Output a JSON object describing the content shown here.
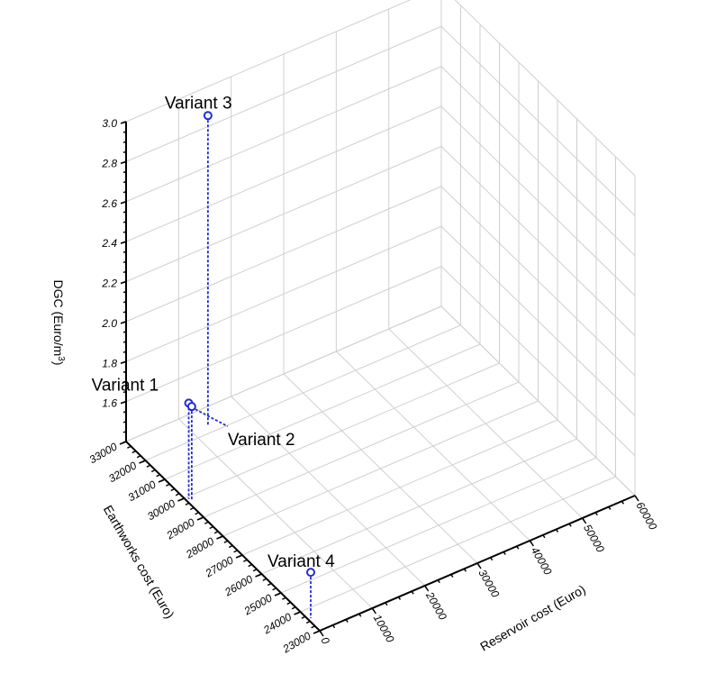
{
  "chart_data": {
    "type": "scatter",
    "title": "",
    "xlabel": "Reservoir cost (Euro)",
    "ylabel": "Earthworks cost (Euro)",
    "zlabel_main": "DGC (Euro/m",
    "zlabel_sup": "3",
    "zlabel_close": ")",
    "xlim": [
      0,
      60000
    ],
    "ylim": [
      23000,
      33000
    ],
    "zlim": [
      1.4,
      3.0
    ],
    "x_ticks": [
      "0",
      "10000",
      "20000",
      "30000",
      "40000",
      "50000",
      "60000"
    ],
    "y_ticks": [
      "23000",
      "24000",
      "25000",
      "26000",
      "27000",
      "28000",
      "29000",
      "30000",
      "31000",
      "32000",
      "33000"
    ],
    "z_ticks": [
      "1.6",
      "1.8",
      "2.0",
      "2.2",
      "2.4",
      "2.6",
      "2.8",
      "3.0"
    ],
    "grid": true,
    "points": [
      {
        "label": "Variant 1",
        "x": 500,
        "y": 29900,
        "z": 1.88
      },
      {
        "label": "Variant 2",
        "x": 700,
        "y": 29800,
        "z": 1.87
      },
      {
        "label": "Variant 3",
        "x": 13000,
        "y": 32300,
        "z": 2.95
      },
      {
        "label": "Variant 4",
        "x": 500,
        "y": 23600,
        "z": 1.63
      }
    ],
    "series_color": "#1f2ccf"
  }
}
